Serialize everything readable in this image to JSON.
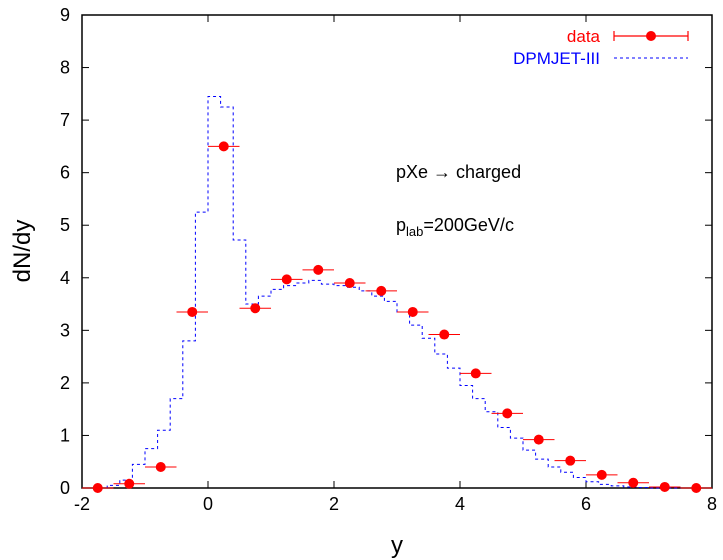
{
  "chart_data": {
    "type": "scatter",
    "xlabel": "y",
    "ylabel": "dN/dy",
    "xlim": [
      -2,
      8
    ],
    "ylim": [
      0,
      9
    ],
    "x_ticks": [
      "-2",
      "0",
      "2",
      "4",
      "6",
      "8"
    ],
    "y_ticks": [
      "0",
      "1",
      "2",
      "3",
      "4",
      "5",
      "6",
      "7",
      "8",
      "9"
    ],
    "grid": false,
    "legend_position": "top-right",
    "series": [
      {
        "name": "data",
        "kind": "points-with-xerror",
        "color": "#ff0000",
        "x": [
          -1.75,
          -1.25,
          -0.75,
          -0.25,
          0.25,
          0.75,
          1.25,
          1.75,
          2.25,
          2.75,
          3.25,
          3.75,
          4.25,
          4.75,
          5.25,
          5.75,
          6.25,
          6.75,
          7.25,
          7.75
        ],
        "y": [
          0.0,
          0.08,
          0.4,
          3.35,
          6.5,
          3.42,
          3.97,
          4.15,
          3.9,
          3.75,
          3.35,
          2.92,
          2.18,
          1.42,
          0.92,
          0.52,
          0.25,
          0.1,
          0.02,
          0.0
        ]
      },
      {
        "name": "DPMJET-III",
        "kind": "histogram-step",
        "color": "#0000ff",
        "bin_edges": [
          -1.8,
          -1.6,
          -1.4,
          -1.2,
          -1.0,
          -0.8,
          -0.6,
          -0.4,
          -0.2,
          0.0,
          0.2,
          0.4,
          0.6,
          0.8,
          1.0,
          1.2,
          1.4,
          1.6,
          1.8,
          2.0,
          2.2,
          2.4,
          2.6,
          2.8,
          3.0,
          3.2,
          3.4,
          3.6,
          3.8,
          4.0,
          4.2,
          4.4,
          4.6,
          4.8,
          5.0,
          5.2,
          5.4,
          5.6,
          5.8,
          6.0,
          6.2,
          6.4,
          6.6,
          6.8,
          7.0,
          7.2,
          7.4,
          7.6,
          7.8
        ],
        "values": [
          0.0,
          0.05,
          0.15,
          0.45,
          0.75,
          1.1,
          1.7,
          2.8,
          5.25,
          7.45,
          7.25,
          4.72,
          3.5,
          3.65,
          3.78,
          3.85,
          3.9,
          3.95,
          3.88,
          3.85,
          3.82,
          3.75,
          3.65,
          3.55,
          3.35,
          3.1,
          2.85,
          2.55,
          2.28,
          1.95,
          1.7,
          1.45,
          1.15,
          0.95,
          0.72,
          0.55,
          0.4,
          0.3,
          0.2,
          0.12,
          0.07,
          0.04,
          0.02,
          0.01,
          0.0,
          0.0,
          0.0,
          0.0
        ]
      }
    ],
    "legend": [
      {
        "label": "data",
        "color": "#ff0000"
      },
      {
        "label": "DPMJET-III",
        "color": "#0000ff"
      }
    ],
    "annotations": {
      "reaction_text": "pXe → charged",
      "plab_main": "p",
      "plab_sub": "lab",
      "plab_rest": "=200GeV/c"
    }
  }
}
